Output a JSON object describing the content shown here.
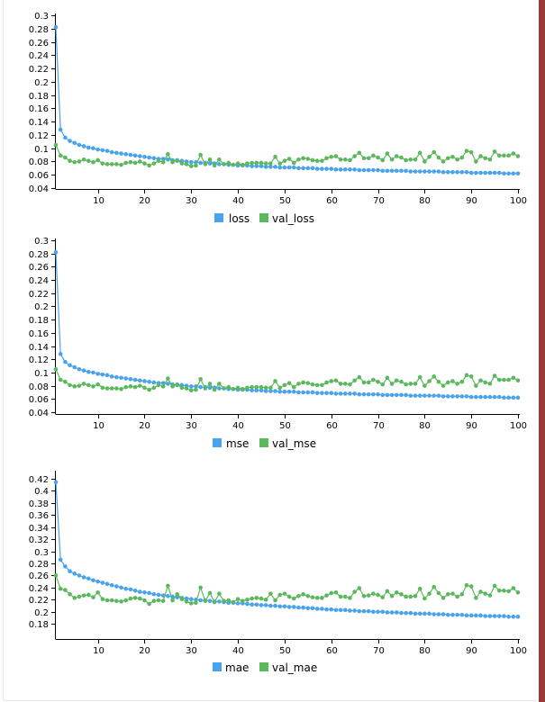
{
  "colors": {
    "train": "#4aa3ed",
    "val": "#5cb85c"
  },
  "chart_data": [
    {
      "type": "line",
      "xlim": [
        1,
        100
      ],
      "ylim": [
        0.04,
        0.3
      ],
      "x_ticks": [
        10,
        20,
        30,
        40,
        50,
        60,
        70,
        80,
        90,
        100
      ],
      "y_ticks": [
        "0.04",
        "0.06",
        "0.08",
        "0.1",
        "0.12",
        "0.14",
        "0.16",
        "0.18",
        "0.2",
        "0.22",
        "0.24",
        "0.26",
        "0.28",
        "0.3"
      ],
      "x_tick_labels": [
        "10",
        "20",
        "30",
        "40",
        "50",
        "60",
        "70",
        "80",
        "90",
        "100"
      ],
      "legend": [
        "loss",
        "val_loss"
      ],
      "series": [
        {
          "name": "loss",
          "values": [
            0.282,
            0.128,
            0.116,
            0.111,
            0.108,
            0.105,
            0.103,
            0.101,
            0.1,
            0.098,
            0.097,
            0.096,
            0.094,
            0.093,
            0.092,
            0.091,
            0.09,
            0.089,
            0.088,
            0.087,
            0.086,
            0.085,
            0.084,
            0.084,
            0.083,
            0.082,
            0.081,
            0.081,
            0.08,
            0.079,
            0.079,
            0.078,
            0.078,
            0.077,
            0.077,
            0.076,
            0.076,
            0.075,
            0.075,
            0.074,
            0.074,
            0.074,
            0.073,
            0.073,
            0.073,
            0.072,
            0.072,
            0.072,
            0.071,
            0.071,
            0.071,
            0.071,
            0.07,
            0.07,
            0.07,
            0.07,
            0.069,
            0.069,
            0.069,
            0.069,
            0.068,
            0.068,
            0.068,
            0.068,
            0.068,
            0.067,
            0.067,
            0.067,
            0.067,
            0.067,
            0.066,
            0.066,
            0.066,
            0.066,
            0.066,
            0.066,
            0.065,
            0.065,
            0.065,
            0.065,
            0.065,
            0.065,
            0.065,
            0.064,
            0.064,
            0.064,
            0.064,
            0.064,
            0.064,
            0.063,
            0.063,
            0.063,
            0.063,
            0.063,
            0.063,
            0.063,
            0.062,
            0.062,
            0.062,
            0.062
          ]
        },
        {
          "name": "val_loss",
          "values": [
            0.105,
            0.089,
            0.086,
            0.081,
            0.079,
            0.08,
            0.083,
            0.081,
            0.079,
            0.082,
            0.077,
            0.076,
            0.076,
            0.076,
            0.075,
            0.078,
            0.079,
            0.078,
            0.08,
            0.077,
            0.074,
            0.077,
            0.081,
            0.079,
            0.091,
            0.079,
            0.082,
            0.077,
            0.076,
            0.073,
            0.074,
            0.09,
            0.076,
            0.083,
            0.074,
            0.083,
            0.076,
            0.078,
            0.075,
            0.077,
            0.075,
            0.077,
            0.078,
            0.078,
            0.078,
            0.077,
            0.077,
            0.087,
            0.077,
            0.081,
            0.084,
            0.078,
            0.083,
            0.085,
            0.084,
            0.082,
            0.081,
            0.081,
            0.085,
            0.087,
            0.088,
            0.083,
            0.083,
            0.082,
            0.088,
            0.093,
            0.085,
            0.085,
            0.089,
            0.086,
            0.082,
            0.092,
            0.083,
            0.088,
            0.086,
            0.082,
            0.083,
            0.083,
            0.093,
            0.08,
            0.087,
            0.094,
            0.086,
            0.08,
            0.085,
            0.087,
            0.083,
            0.086,
            0.096,
            0.094,
            0.08,
            0.088,
            0.085,
            0.083,
            0.095,
            0.089,
            0.089,
            0.089,
            0.092,
            0.088
          ]
        }
      ]
    },
    {
      "type": "line",
      "xlim": [
        1,
        100
      ],
      "ylim": [
        0.04,
        0.3
      ],
      "x_ticks": [
        10,
        20,
        30,
        40,
        50,
        60,
        70,
        80,
        90,
        100
      ],
      "y_ticks": [
        "0.04",
        "0.06",
        "0.08",
        "0.1",
        "0.12",
        "0.14",
        "0.16",
        "0.18",
        "0.2",
        "0.22",
        "0.24",
        "0.26",
        "0.28",
        "0.3"
      ],
      "x_tick_labels": [
        "10",
        "20",
        "30",
        "40",
        "50",
        "60",
        "70",
        "80",
        "90",
        "100"
      ],
      "legend": [
        "mse",
        "val_mse"
      ],
      "series": [
        {
          "name": "mse",
          "values": [
            0.282,
            0.128,
            0.116,
            0.111,
            0.108,
            0.105,
            0.103,
            0.101,
            0.1,
            0.098,
            0.097,
            0.096,
            0.094,
            0.093,
            0.092,
            0.091,
            0.09,
            0.089,
            0.088,
            0.087,
            0.086,
            0.085,
            0.084,
            0.084,
            0.083,
            0.082,
            0.081,
            0.081,
            0.08,
            0.079,
            0.079,
            0.078,
            0.078,
            0.077,
            0.077,
            0.076,
            0.076,
            0.075,
            0.075,
            0.074,
            0.074,
            0.074,
            0.073,
            0.073,
            0.073,
            0.072,
            0.072,
            0.072,
            0.071,
            0.071,
            0.071,
            0.071,
            0.07,
            0.07,
            0.07,
            0.07,
            0.069,
            0.069,
            0.069,
            0.069,
            0.068,
            0.068,
            0.068,
            0.068,
            0.068,
            0.067,
            0.067,
            0.067,
            0.067,
            0.067,
            0.066,
            0.066,
            0.066,
            0.066,
            0.066,
            0.066,
            0.065,
            0.065,
            0.065,
            0.065,
            0.065,
            0.065,
            0.065,
            0.064,
            0.064,
            0.064,
            0.064,
            0.064,
            0.064,
            0.063,
            0.063,
            0.063,
            0.063,
            0.063,
            0.063,
            0.063,
            0.062,
            0.062,
            0.062,
            0.062
          ]
        },
        {
          "name": "val_mse",
          "values": [
            0.105,
            0.089,
            0.086,
            0.081,
            0.079,
            0.08,
            0.083,
            0.081,
            0.079,
            0.082,
            0.077,
            0.076,
            0.076,
            0.076,
            0.075,
            0.078,
            0.079,
            0.078,
            0.08,
            0.077,
            0.074,
            0.077,
            0.081,
            0.079,
            0.091,
            0.079,
            0.082,
            0.077,
            0.076,
            0.073,
            0.074,
            0.09,
            0.076,
            0.083,
            0.074,
            0.083,
            0.076,
            0.078,
            0.075,
            0.077,
            0.075,
            0.077,
            0.078,
            0.078,
            0.078,
            0.077,
            0.077,
            0.087,
            0.077,
            0.081,
            0.084,
            0.078,
            0.083,
            0.085,
            0.084,
            0.082,
            0.081,
            0.081,
            0.085,
            0.087,
            0.088,
            0.083,
            0.083,
            0.082,
            0.088,
            0.093,
            0.085,
            0.085,
            0.089,
            0.086,
            0.082,
            0.092,
            0.083,
            0.088,
            0.086,
            0.082,
            0.083,
            0.083,
            0.093,
            0.08,
            0.087,
            0.094,
            0.086,
            0.08,
            0.085,
            0.087,
            0.083,
            0.086,
            0.096,
            0.094,
            0.08,
            0.088,
            0.085,
            0.083,
            0.095,
            0.089,
            0.089,
            0.089,
            0.092,
            0.088
          ]
        }
      ]
    },
    {
      "type": "line",
      "xlim": [
        1,
        100
      ],
      "ylim": [
        0.17,
        0.43
      ],
      "x_ticks": [
        10,
        20,
        30,
        40,
        50,
        60,
        70,
        80,
        90,
        100
      ],
      "y_ticks": [
        "0.18",
        "0.2",
        "0.22",
        "0.24",
        "0.26",
        "0.28",
        "0.3",
        "0.32",
        "0.34",
        "0.36",
        "0.38",
        "0.4",
        "0.42"
      ],
      "x_tick_labels": [
        "10",
        "20",
        "30",
        "40",
        "50",
        "60",
        "70",
        "80",
        "90",
        "100"
      ],
      "legend": [
        "mae",
        "val_mae"
      ],
      "series": [
        {
          "name": "mae",
          "values": [
            0.414,
            0.286,
            0.275,
            0.267,
            0.263,
            0.26,
            0.257,
            0.255,
            0.252,
            0.25,
            0.248,
            0.246,
            0.244,
            0.242,
            0.24,
            0.238,
            0.237,
            0.235,
            0.233,
            0.232,
            0.231,
            0.229,
            0.228,
            0.227,
            0.226,
            0.225,
            0.224,
            0.223,
            0.222,
            0.221,
            0.22,
            0.219,
            0.219,
            0.218,
            0.217,
            0.217,
            0.216,
            0.215,
            0.215,
            0.214,
            0.214,
            0.213,
            0.212,
            0.212,
            0.211,
            0.211,
            0.21,
            0.21,
            0.209,
            0.209,
            0.208,
            0.208,
            0.207,
            0.207,
            0.206,
            0.206,
            0.205,
            0.205,
            0.204,
            0.204,
            0.203,
            0.203,
            0.203,
            0.202,
            0.202,
            0.201,
            0.201,
            0.201,
            0.2,
            0.2,
            0.2,
            0.199,
            0.199,
            0.199,
            0.198,
            0.198,
            0.198,
            0.197,
            0.197,
            0.197,
            0.197,
            0.196,
            0.196,
            0.196,
            0.195,
            0.195,
            0.195,
            0.195,
            0.194,
            0.194,
            0.194,
            0.194,
            0.193,
            0.193,
            0.193,
            0.193,
            0.193,
            0.192,
            0.192,
            0.192
          ]
        },
        {
          "name": "val_mae",
          "values": [
            0.26,
            0.238,
            0.236,
            0.229,
            0.223,
            0.225,
            0.227,
            0.228,
            0.224,
            0.232,
            0.221,
            0.219,
            0.219,
            0.218,
            0.217,
            0.219,
            0.222,
            0.223,
            0.222,
            0.219,
            0.213,
            0.218,
            0.219,
            0.218,
            0.243,
            0.219,
            0.229,
            0.221,
            0.217,
            0.214,
            0.215,
            0.24,
            0.218,
            0.231,
            0.216,
            0.23,
            0.218,
            0.219,
            0.216,
            0.221,
            0.218,
            0.22,
            0.222,
            0.223,
            0.222,
            0.22,
            0.23,
            0.219,
            0.228,
            0.23,
            0.225,
            0.222,
            0.226,
            0.229,
            0.226,
            0.224,
            0.223,
            0.223,
            0.227,
            0.231,
            0.232,
            0.225,
            0.225,
            0.223,
            0.233,
            0.239,
            0.226,
            0.227,
            0.23,
            0.228,
            0.224,
            0.234,
            0.226,
            0.232,
            0.229,
            0.225,
            0.225,
            0.226,
            0.238,
            0.222,
            0.23,
            0.241,
            0.231,
            0.223,
            0.229,
            0.23,
            0.225,
            0.229,
            0.244,
            0.242,
            0.223,
            0.233,
            0.23,
            0.227,
            0.243,
            0.235,
            0.235,
            0.234,
            0.239,
            0.232
          ]
        }
      ]
    }
  ]
}
